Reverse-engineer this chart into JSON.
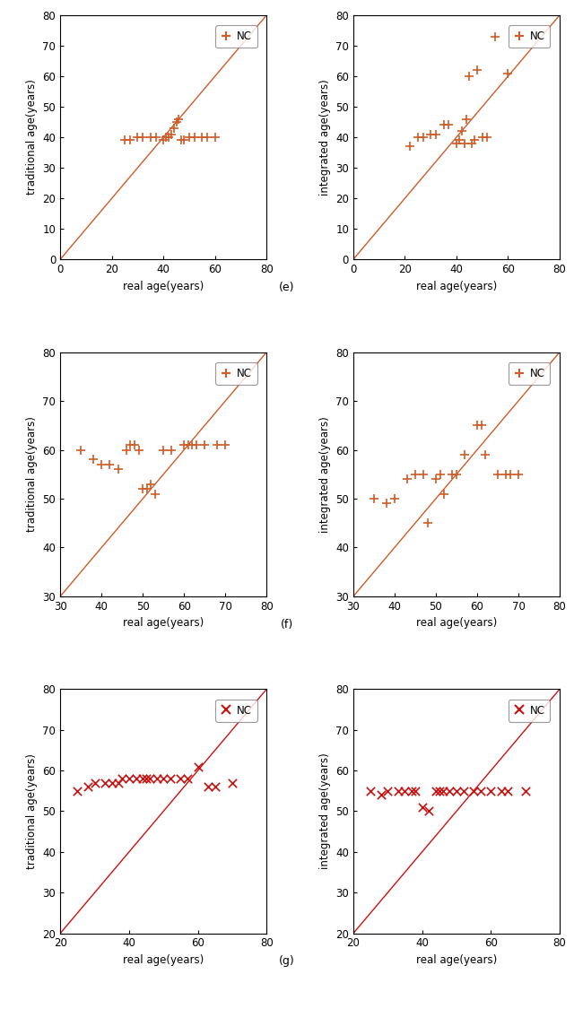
{
  "panel_e_left": {
    "xlabel": "real age(years)",
    "ylabel": "traditional age(years)",
    "xlim": [
      0,
      80
    ],
    "ylim": [
      0,
      80
    ],
    "xticks": [
      0,
      20,
      40,
      60,
      80
    ],
    "yticks": [
      0,
      10,
      20,
      30,
      40,
      50,
      60,
      70,
      80
    ],
    "scatter_x": [
      25,
      27,
      30,
      32,
      35,
      37,
      40,
      41,
      42,
      43,
      44,
      45,
      46,
      47,
      48,
      50,
      52,
      55,
      57,
      60
    ],
    "scatter_y": [
      39,
      39,
      40,
      40,
      40,
      40,
      39,
      40,
      40,
      41,
      43,
      45,
      46,
      39,
      39,
      40,
      40,
      40,
      40,
      40
    ],
    "marker": "+",
    "color": "#CD5C28",
    "legend_label": "NC"
  },
  "panel_e_right": {
    "xlabel": "real age(years)",
    "ylabel": "integrated age(years)",
    "xlim": [
      0,
      80
    ],
    "ylim": [
      0,
      80
    ],
    "xticks": [
      0,
      20,
      40,
      60,
      80
    ],
    "yticks": [
      0,
      10,
      20,
      30,
      40,
      50,
      60,
      70,
      80
    ],
    "scatter_x": [
      22,
      25,
      27,
      30,
      32,
      35,
      37,
      40,
      41,
      42,
      43,
      44,
      45,
      46,
      47,
      48,
      50,
      52,
      55,
      60
    ],
    "scatter_y": [
      37,
      40,
      40,
      41,
      41,
      44,
      44,
      38,
      39,
      42,
      38,
      46,
      60,
      38,
      39,
      62,
      40,
      40,
      73,
      61
    ],
    "marker": "+",
    "color": "#CD5C28",
    "legend_label": "NC"
  },
  "panel_f_left": {
    "xlabel": "real age(years)",
    "ylabel": "traditional age(years)",
    "xlim": [
      30,
      80
    ],
    "ylim": [
      30,
      80
    ],
    "xticks": [
      30,
      40,
      50,
      60,
      70,
      80
    ],
    "yticks": [
      30,
      40,
      50,
      60,
      70,
      80
    ],
    "scatter_x": [
      35,
      38,
      40,
      42,
      44,
      46,
      47,
      48,
      49,
      50,
      51,
      52,
      53,
      55,
      57,
      60,
      61,
      62,
      63,
      65,
      68,
      70
    ],
    "scatter_y": [
      60,
      58,
      57,
      57,
      56,
      60,
      61,
      61,
      60,
      52,
      52,
      53,
      51,
      60,
      60,
      61,
      61,
      61,
      61,
      61,
      61,
      61
    ],
    "marker": "+",
    "color": "#CD5C28",
    "legend_label": "NC"
  },
  "panel_f_right": {
    "xlabel": "real age(years)",
    "ylabel": "integrated age(years)",
    "xlim": [
      30,
      80
    ],
    "ylim": [
      30,
      80
    ],
    "xticks": [
      30,
      40,
      50,
      60,
      70,
      80
    ],
    "yticks": [
      30,
      40,
      50,
      60,
      70,
      80
    ],
    "scatter_x": [
      35,
      38,
      40,
      43,
      45,
      47,
      48,
      50,
      51,
      52,
      54,
      55,
      57,
      60,
      61,
      62,
      65,
      67,
      68,
      70
    ],
    "scatter_y": [
      50,
      49,
      50,
      54,
      55,
      55,
      45,
      54,
      55,
      51,
      55,
      55,
      59,
      65,
      65,
      59,
      55,
      55,
      55,
      55
    ],
    "marker": "+",
    "color": "#CD5C28",
    "legend_label": "NC"
  },
  "panel_g_left": {
    "xlabel": "real age(years)",
    "ylabel": "traditional age(years)",
    "xlim": [
      20,
      80
    ],
    "ylim": [
      20,
      80
    ],
    "xticks": [
      20,
      40,
      60,
      80
    ],
    "yticks": [
      20,
      30,
      40,
      50,
      60,
      70,
      80
    ],
    "scatter_x": [
      25,
      28,
      30,
      33,
      35,
      37,
      38,
      40,
      42,
      44,
      45,
      46,
      48,
      50,
      52,
      55,
      57,
      60,
      63,
      65,
      70
    ],
    "scatter_y": [
      55,
      56,
      57,
      57,
      57,
      57,
      58,
      58,
      58,
      58,
      58,
      58,
      58,
      58,
      58,
      58,
      58,
      61,
      56,
      56,
      57
    ],
    "marker": "x",
    "color": "#CC1111",
    "legend_label": "NC"
  },
  "panel_g_right": {
    "xlabel": "real age(years)",
    "ylabel": "integrated age(years)",
    "xlim": [
      20,
      80
    ],
    "ylim": [
      20,
      80
    ],
    "xticks": [
      20,
      40,
      60,
      80
    ],
    "yticks": [
      20,
      30,
      40,
      50,
      60,
      70,
      80
    ],
    "scatter_x": [
      25,
      28,
      30,
      33,
      35,
      37,
      38,
      40,
      42,
      44,
      45,
      46,
      48,
      50,
      52,
      55,
      57,
      60,
      63,
      65,
      70
    ],
    "scatter_y": [
      55,
      54,
      55,
      55,
      55,
      55,
      55,
      51,
      50,
      55,
      55,
      55,
      55,
      55,
      55,
      55,
      55,
      55,
      55,
      55,
      55
    ],
    "marker": "x",
    "color": "#CC1111",
    "legend_label": "NC"
  },
  "label_e": "(e)",
  "label_f": "(f)",
  "label_g": "(g)",
  "line_color_ef": "#CD5C28",
  "line_color_g": "#CC1111",
  "fig_bgcolor": "white",
  "font_size": 8.5
}
